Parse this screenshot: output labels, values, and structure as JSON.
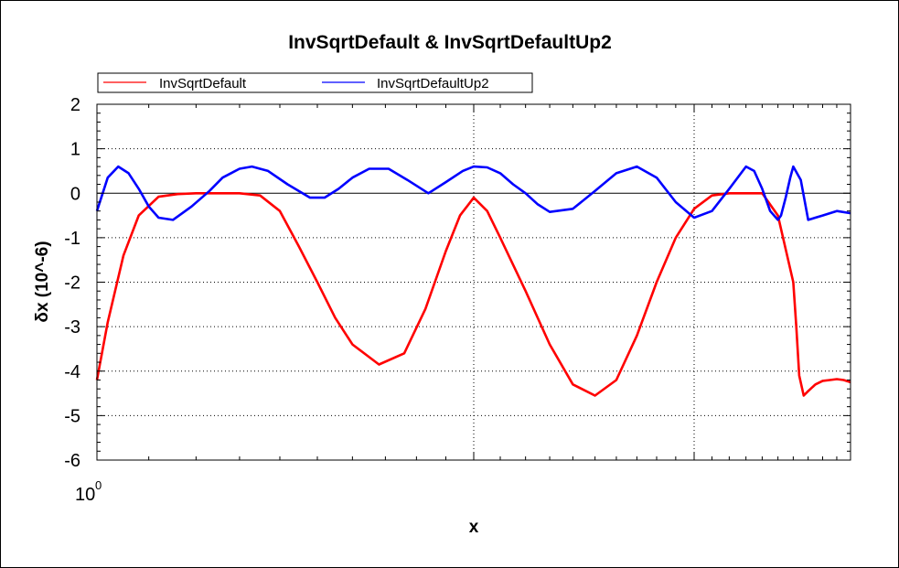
{
  "chart_data": {
    "type": "line",
    "title": "InvSqrtDefault & InvSqrtDefaultUp2",
    "xlabel": "x",
    "ylabel": "δx (10^-6)",
    "x_scale": "log",
    "xlim": [
      1,
      4
    ],
    "ylim": [
      -6,
      2
    ],
    "y_ticks": [
      "2",
      "1",
      "0",
      "-1",
      "-2",
      "-3",
      "-4",
      "-5",
      "-6"
    ],
    "x_tick_label_base": "10",
    "x_tick_label_exp": "0",
    "grid": true,
    "legend_position": "top",
    "series": [
      {
        "name": "InvSqrtDefault",
        "color": "#ff0000",
        "x": [
          1.0,
          1.02,
          1.05,
          1.08,
          1.12,
          1.16,
          1.2,
          1.25,
          1.3,
          1.35,
          1.4,
          1.45,
          1.5,
          1.55,
          1.6,
          1.68,
          1.76,
          1.83,
          1.9,
          1.95,
          2.0,
          2.05,
          2.1,
          2.2,
          2.3,
          2.4,
          2.5,
          2.6,
          2.7,
          2.8,
          2.9,
          3.0,
          3.1,
          3.2,
          3.3,
          3.4,
          3.5,
          3.6,
          3.62,
          3.64,
          3.67,
          3.7,
          3.75,
          3.8,
          3.85,
          3.9,
          3.95,
          4.0
        ],
        "y": [
          -4.2,
          -2.9,
          -1.4,
          -0.5,
          -0.08,
          -0.02,
          0.0,
          0.0,
          0.0,
          -0.05,
          -0.4,
          -1.2,
          -2.0,
          -2.8,
          -3.4,
          -3.85,
          -3.6,
          -2.6,
          -1.3,
          -0.5,
          -0.1,
          -0.4,
          -1.0,
          -2.2,
          -3.4,
          -4.3,
          -4.55,
          -4.2,
          -3.2,
          -2.0,
          -1.0,
          -0.35,
          -0.05,
          0.0,
          0.0,
          0.0,
          -0.5,
          -2.0,
          -3.0,
          -4.1,
          -4.55,
          -4.45,
          -4.3,
          -4.22,
          -4.2,
          -4.18,
          -4.2,
          -4.25
        ]
      },
      {
        "name": "InvSqrtDefaultUp2",
        "color": "#0000ff",
        "x": [
          1.0,
          1.02,
          1.04,
          1.06,
          1.08,
          1.1,
          1.12,
          1.15,
          1.19,
          1.23,
          1.26,
          1.3,
          1.33,
          1.37,
          1.42,
          1.48,
          1.52,
          1.56,
          1.6,
          1.65,
          1.71,
          1.77,
          1.84,
          1.9,
          1.96,
          2.0,
          2.05,
          2.1,
          2.15,
          2.2,
          2.25,
          2.3,
          2.4,
          2.5,
          2.6,
          2.7,
          2.8,
          2.9,
          3.0,
          3.1,
          3.2,
          3.3,
          3.35,
          3.4,
          3.45,
          3.5,
          3.52,
          3.55,
          3.58,
          3.6,
          3.65,
          3.7,
          3.8,
          3.9,
          4.0
        ],
        "y": [
          -0.4,
          0.35,
          0.6,
          0.45,
          0.1,
          -0.3,
          -0.55,
          -0.6,
          -0.3,
          0.05,
          0.35,
          0.55,
          0.6,
          0.5,
          0.2,
          -0.1,
          -0.1,
          0.1,
          0.35,
          0.55,
          0.55,
          0.3,
          0.0,
          0.25,
          0.5,
          0.6,
          0.58,
          0.45,
          0.2,
          0.0,
          -0.25,
          -0.42,
          -0.35,
          0.05,
          0.45,
          0.6,
          0.35,
          -0.2,
          -0.55,
          -0.4,
          0.1,
          0.6,
          0.5,
          0.1,
          -0.4,
          -0.6,
          -0.5,
          -0.1,
          0.35,
          0.6,
          0.3,
          -0.6,
          -0.5,
          -0.4,
          -0.45
        ]
      }
    ]
  }
}
